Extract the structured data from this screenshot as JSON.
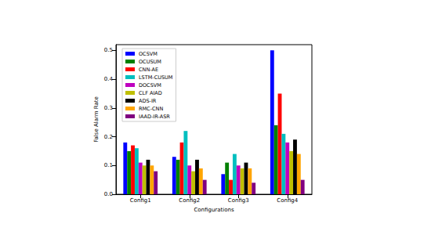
{
  "chart_data": {
    "type": "bar",
    "x_label": "Configurations",
    "y_label": "False Alarm Rate",
    "categories": [
      "Config1",
      "Config2",
      "Config3",
      "Config4"
    ],
    "series": [
      {
        "name": "OCSVM",
        "color": "#0000ff",
        "values": [
          0.18,
          0.13,
          0.07,
          0.5
        ]
      },
      {
        "name": "OCUSUM",
        "color": "#008000",
        "values": [
          0.15,
          0.12,
          0.11,
          0.24
        ]
      },
      {
        "name": "CNN-AE",
        "color": "#ff0000",
        "values": [
          0.17,
          0.18,
          0.05,
          0.35
        ]
      },
      {
        "name": "LSTM-CUSUM",
        "color": "#00bfbf",
        "values": [
          0.16,
          0.22,
          0.14,
          0.21
        ]
      },
      {
        "name": "DOCSVM",
        "color": "#bf00bf",
        "values": [
          0.11,
          0.1,
          0.1,
          0.18
        ]
      },
      {
        "name": "CLF AIAD",
        "color": "#bfbf00",
        "values": [
          0.1,
          0.08,
          0.09,
          0.15
        ]
      },
      {
        "name": "ADS-IR",
        "color": "#000000",
        "values": [
          0.12,
          0.12,
          0.11,
          0.19
        ]
      },
      {
        "name": "RMC-CNN",
        "color": "#ffa500",
        "values": [
          0.1,
          0.09,
          0.09,
          0.14
        ]
      },
      {
        "name": "IAAD-IR-ASR",
        "color": "#800080",
        "values": [
          0.08,
          0.05,
          0.04,
          0.05
        ]
      }
    ],
    "ylim": [
      0,
      0.52
    ],
    "yticks": [
      {
        "value": 0,
        "label": "0.0"
      },
      0.1,
      0.2,
      0.3,
      0.4,
      0.5
    ],
    "grid": false,
    "legend": "upper left"
  }
}
